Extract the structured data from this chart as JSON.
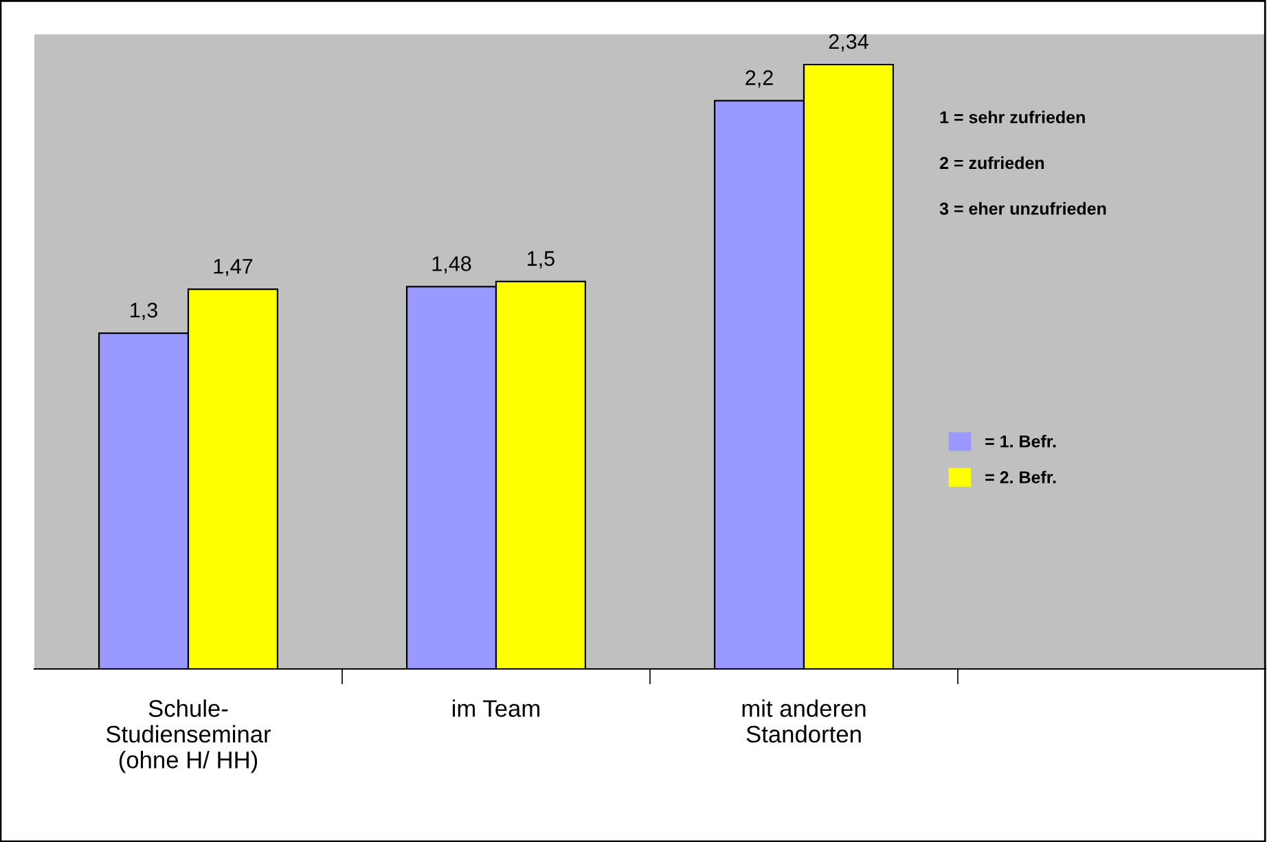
{
  "chart_data": {
    "type": "bar",
    "categories": [
      "Schule-\nStudienseminar\n(ohne H/ HH)",
      "im Team",
      "mit anderen\nStandorten",
      null
    ],
    "series": [
      {
        "name": "= 1. Befr.",
        "color": "#9999ff",
        "values": [
          1.3,
          1.48,
          2.2,
          null
        ],
        "value_labels": [
          "1,3",
          "1,48",
          "2,2",
          null
        ]
      },
      {
        "name": "= 2. Befr.",
        "color": "#ffff00",
        "values": [
          1.47,
          1.5,
          2.34,
          null
        ],
        "value_labels": [
          "1,47",
          "1,5",
          "2,34",
          null
        ]
      }
    ],
    "tick_labels": "x",
    "legend": "right",
    "grid": false,
    "annotations": [
      "1 = sehr zufrieden",
      "2 = zufrieden",
      "3 = eher unzufrieden"
    ]
  }
}
